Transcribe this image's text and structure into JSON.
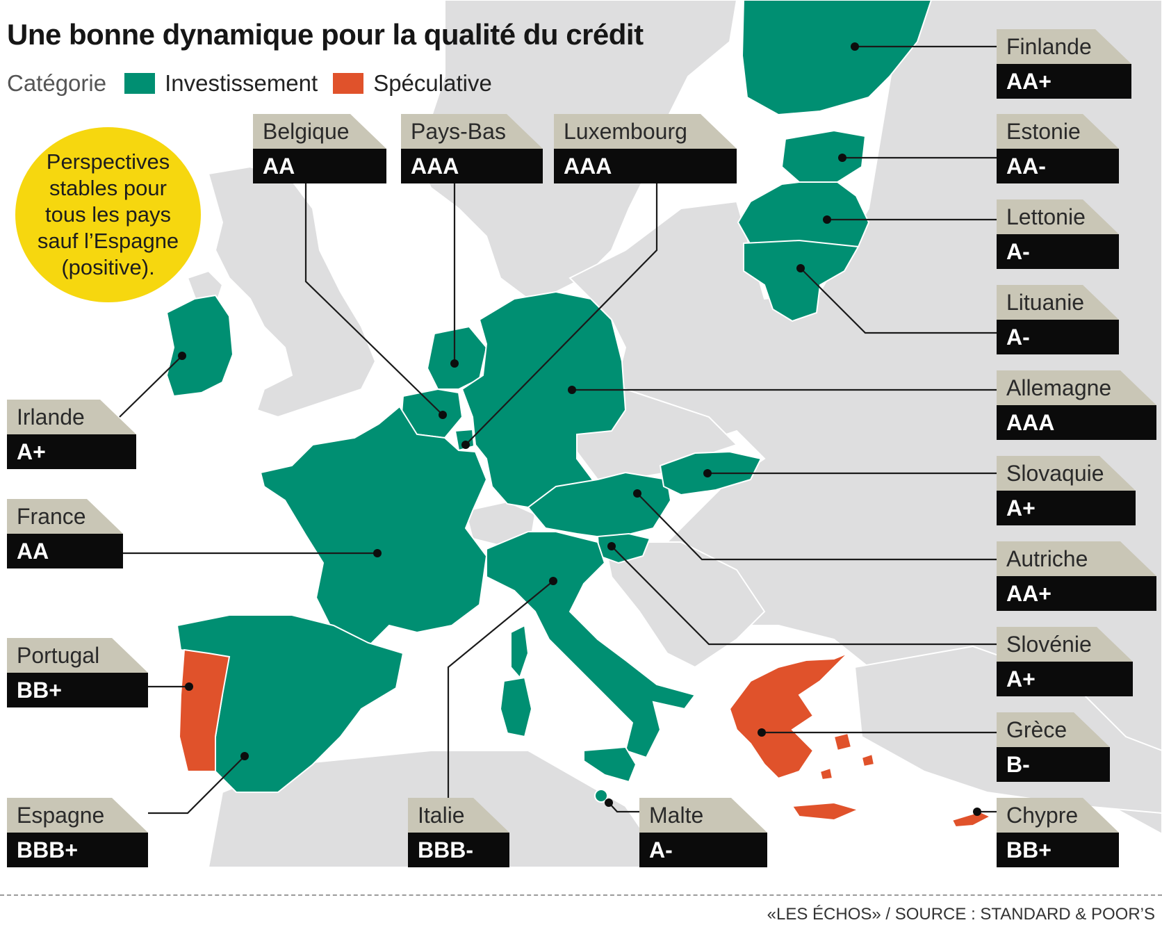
{
  "title": "Une bonne dynamique pour la qualité du crédit",
  "legend": {
    "label": "Catégorie",
    "items": [
      {
        "name": "Investissement",
        "color": "#008f72"
      },
      {
        "name": "Spéculative",
        "color": "#e0522b"
      }
    ]
  },
  "note": "Perspectives\nstables pour\ntous les pays\nsauf l’Espagne\n(positive).",
  "colors": {
    "investment": "#008f72",
    "speculative": "#e0522b",
    "land": "#dededf",
    "sea": "#ffffff",
    "label_name_bg": "#c9c6b6",
    "label_rating_bg": "#0b0b0b",
    "note_bg": "#f6d70f"
  },
  "countries": [
    {
      "name": "Finlande",
      "rating": "AA+",
      "category": "Investissement"
    },
    {
      "name": "Estonie",
      "rating": "AA-",
      "category": "Investissement"
    },
    {
      "name": "Lettonie",
      "rating": "A-",
      "category": "Investissement"
    },
    {
      "name": "Lituanie",
      "rating": "A-",
      "category": "Investissement"
    },
    {
      "name": "Allemagne",
      "rating": "AAA",
      "category": "Investissement"
    },
    {
      "name": "Slovaquie",
      "rating": "A+",
      "category": "Investissement"
    },
    {
      "name": "Autriche",
      "rating": "AA+",
      "category": "Investissement"
    },
    {
      "name": "Slovénie",
      "rating": "A+",
      "category": "Investissement"
    },
    {
      "name": "Grèce",
      "rating": "B-",
      "category": "Spéculative"
    },
    {
      "name": "Chypre",
      "rating": "BB+",
      "category": "Spéculative"
    },
    {
      "name": "Belgique",
      "rating": "AA",
      "category": "Investissement"
    },
    {
      "name": "Pays-Bas",
      "rating": "AAA",
      "category": "Investissement"
    },
    {
      "name": "Luxembourg",
      "rating": "AAA",
      "category": "Investissement"
    },
    {
      "name": "Irlande",
      "rating": "A+",
      "category": "Investissement"
    },
    {
      "name": "France",
      "rating": "AA",
      "category": "Investissement"
    },
    {
      "name": "Portugal",
      "rating": "BB+",
      "category": "Spéculative"
    },
    {
      "name": "Espagne",
      "rating": "BBB+",
      "category": "Investissement"
    },
    {
      "name": "Italie",
      "rating": "BBB-",
      "category": "Investissement"
    },
    {
      "name": "Malte",
      "rating": "A-",
      "category": "Investissement"
    }
  ],
  "source": "«LES ÉCHOS» / SOURCE : STANDARD & POOR’S"
}
